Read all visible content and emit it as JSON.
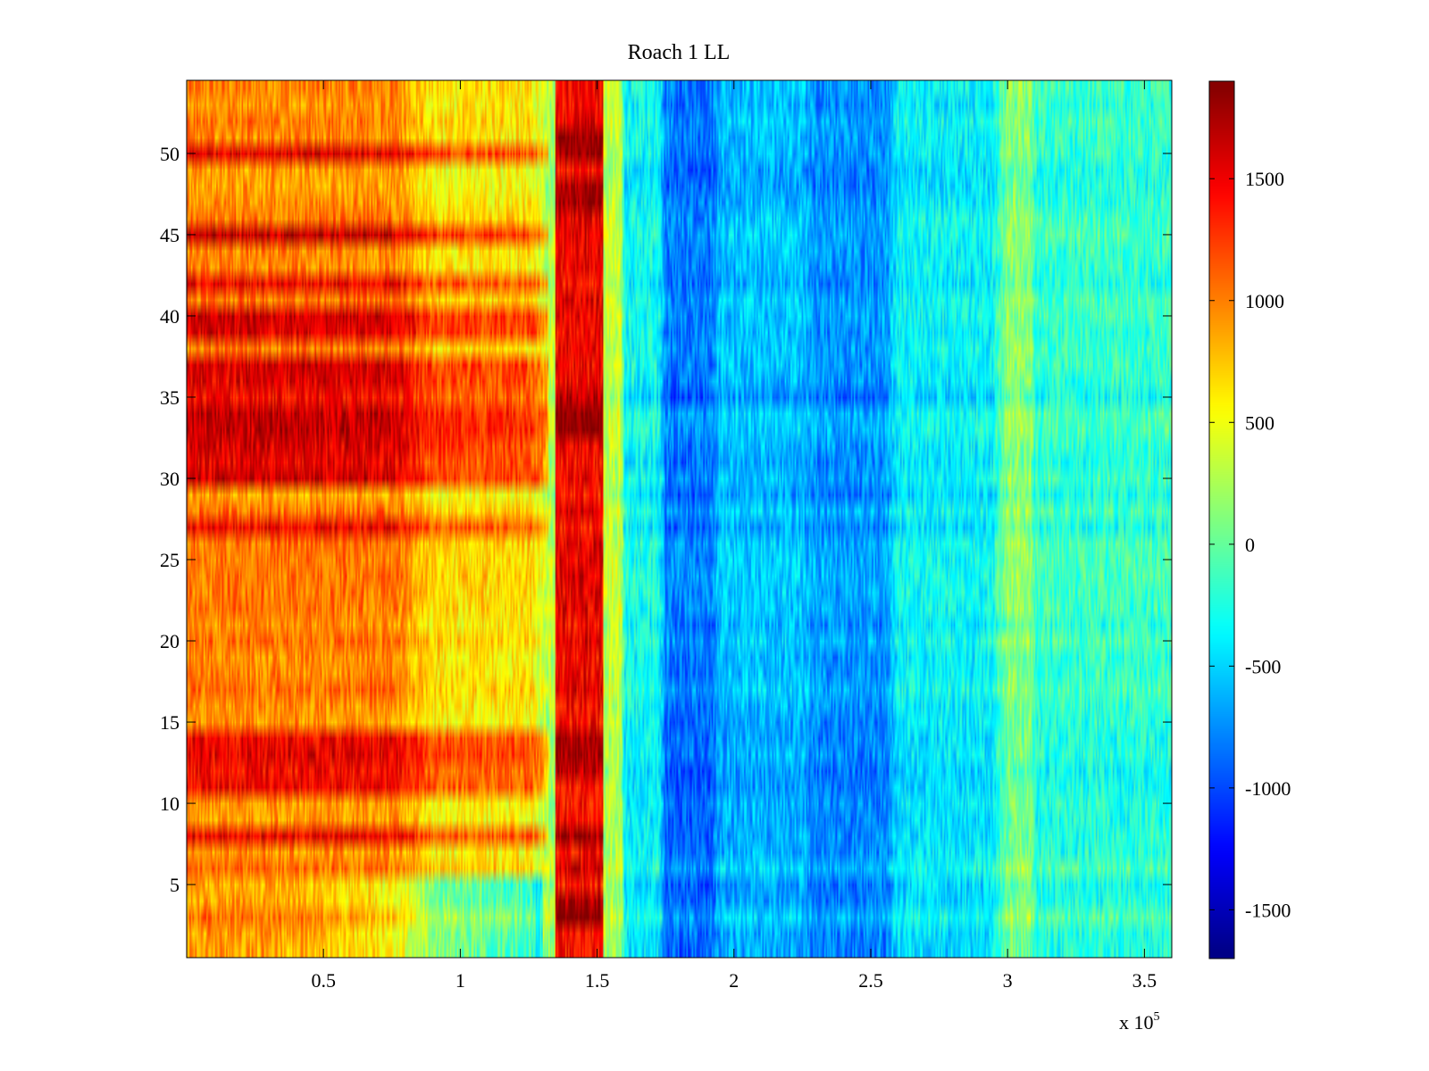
{
  "chart_data": {
    "type": "heatmap",
    "title": "Roach 1 LL",
    "xlabel": "",
    "ylabel": "",
    "x_exponent_label": {
      "prefix": "x 10",
      "exponent": "5"
    },
    "xlim": [
      0,
      3.6
    ],
    "ylim": [
      0.5,
      54.5
    ],
    "x_ticks": [
      0.5,
      1,
      1.5,
      2,
      2.5,
      3,
      3.5
    ],
    "x_tick_labels": [
      "0.5",
      "1",
      "1.5",
      "2",
      "2.5",
      "3",
      "3.5"
    ],
    "y_ticks": [
      5,
      10,
      15,
      20,
      25,
      30,
      35,
      40,
      45,
      50
    ],
    "y_tick_labels": [
      "5",
      "10",
      "15",
      "20",
      "25",
      "30",
      "35",
      "40",
      "45",
      "50"
    ],
    "colorbar": {
      "colormap": "jet",
      "clim": [
        -1700,
        1900
      ],
      "ticks": [
        -1500,
        -1000,
        -500,
        0,
        500,
        1000,
        1500
      ],
      "tick_labels": [
        "-1500",
        "-1000",
        "-500",
        "0",
        "500",
        "1000",
        "1500"
      ]
    },
    "rows": 54,
    "x_breakpoints": [
      0,
      0.9,
      1.32,
      1.35,
      1.52,
      1.6,
      1.75,
      1.95,
      2.3,
      2.6,
      3.0,
      3.1,
      3.6
    ],
    "x_profile": [
      950,
      600,
      250,
      1450,
      300,
      -350,
      -850,
      -600,
      -750,
      -400,
      100,
      -200
    ],
    "bright_rows": [
      8,
      11,
      12,
      13,
      14,
      27,
      30,
      31,
      32,
      33,
      34,
      35,
      36,
      37,
      39,
      40,
      42,
      45,
      50
    ],
    "hot_band_strong_rows": [
      3,
      4,
      8,
      12,
      13,
      14,
      33,
      34,
      35,
      47,
      48,
      50,
      51
    ],
    "low_rows": [
      1,
      2,
      3,
      4,
      5
    ],
    "background": "#ffffff",
    "axis_color": "#000000"
  }
}
